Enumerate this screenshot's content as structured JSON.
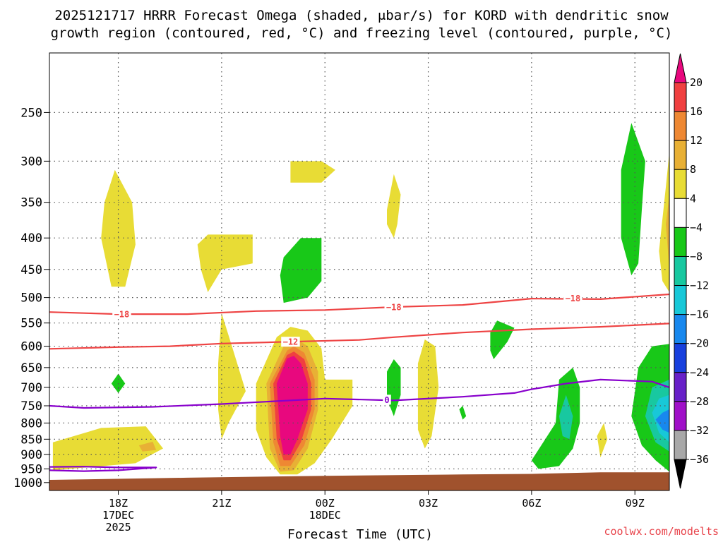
{
  "title_lines": [
    "2025121717 HRRR Forecast Omega (shaded, μbar/s) for KORD with dendritic snow",
    "growth region (contoured, red, °C) and freezing level (contoured, purple, °C)"
  ],
  "credit": "coolwx.com/modelts",
  "colors": {
    "temp_contour": "#ee4444",
    "freezing_contour": "#8800cc",
    "ground": "#a0522d",
    "grid": "#555555"
  },
  "chart_data": {
    "type": "heatmap",
    "title": "2025121717 HRRR Forecast Omega (shaded, μbar/s) for KORD with dendritic snow growth region (contoured, red, °C) and freezing level (contoured, purple, °C)",
    "xlabel": "Forecast Time (UTC)",
    "ylabel": "",
    "x_range_hours": [
      -1,
      17
    ],
    "y_range_hpa": [
      200,
      1030
    ],
    "y_scale": "log-pressure (inverted)",
    "x_ticks": [
      {
        "hours": 1,
        "label": "18Z",
        "sub": [
          "17DEC",
          "2025"
        ]
      },
      {
        "hours": 4,
        "label": "21Z",
        "sub": []
      },
      {
        "hours": 7,
        "label": "00Z",
        "sub": [
          "18DEC"
        ]
      },
      {
        "hours": 10,
        "label": "03Z",
        "sub": []
      },
      {
        "hours": 13,
        "label": "06Z",
        "sub": []
      },
      {
        "hours": 16,
        "label": "09Z",
        "sub": []
      }
    ],
    "y_ticks": [
      250,
      300,
      350,
      400,
      450,
      500,
      550,
      600,
      650,
      700,
      750,
      800,
      850,
      900,
      950,
      1000
    ],
    "colorbar": {
      "levels": [
        -36,
        -32,
        -28,
        -24,
        -20,
        -16,
        -12,
        -8,
        -4,
        4,
        8,
        12,
        16,
        20
      ],
      "labels": [
        "20",
        "16",
        "12",
        "8",
        "4",
        "−4",
        "−8",
        "−12",
        "−16",
        "−20",
        "−24",
        "−28",
        "−32",
        "−36"
      ],
      "colors_top_to_bottom": [
        "#e8087e",
        "#f04040",
        "#ee8833",
        "#e8b035",
        "#e8dc35",
        "#ffffff",
        "#18c818",
        "#18c8a0",
        "#18c8d8",
        "#1888ee",
        "#1840dd",
        "#6820c8",
        "#a010c8",
        "#a8a8a8",
        "#000000"
      ]
    },
    "shaded_regions": [
      {
        "color": "#e8dc35",
        "omega": 6,
        "points": [
          [
            -0.9,
            955
          ],
          [
            1.5,
            930
          ],
          [
            2.3,
            880
          ],
          [
            1.8,
            810
          ],
          [
            0.5,
            815
          ],
          [
            -0.9,
            860
          ]
        ]
      },
      {
        "color": "#e8b035",
        "omega": 9,
        "points": [
          [
            1.6,
            870
          ],
          [
            2.0,
            858
          ],
          [
            2.1,
            885
          ],
          [
            1.7,
            890
          ]
        ]
      },
      {
        "color": "#e8dc35",
        "omega": 5,
        "points": [
          [
            0.6,
            350
          ],
          [
            0.9,
            310
          ],
          [
            1.4,
            350
          ],
          [
            1.5,
            410
          ],
          [
            1.2,
            480
          ],
          [
            0.8,
            480
          ],
          [
            0.5,
            400
          ]
        ]
      },
      {
        "color": "#18c818",
        "omega": -5,
        "points": [
          [
            0.8,
            690
          ],
          [
            1.0,
            665
          ],
          [
            1.2,
            690
          ],
          [
            1.0,
            715
          ]
        ]
      },
      {
        "color": "#e8dc35",
        "omega": 5,
        "points": [
          [
            3.3,
            410
          ],
          [
            3.6,
            395
          ],
          [
            4.9,
            395
          ],
          [
            4.9,
            440
          ],
          [
            4.0,
            450
          ],
          [
            3.6,
            490
          ],
          [
            3.4,
            450
          ]
        ]
      },
      {
        "color": "#e8dc35",
        "omega": 5,
        "points": [
          [
            6.0,
            300
          ],
          [
            6.9,
            300
          ],
          [
            7.3,
            310
          ],
          [
            6.9,
            325
          ],
          [
            6.0,
            325
          ]
        ]
      },
      {
        "color": "#18c818",
        "omega": -6,
        "points": [
          [
            5.8,
            430
          ],
          [
            6.3,
            400
          ],
          [
            6.9,
            400
          ],
          [
            6.9,
            470
          ],
          [
            6.5,
            500
          ],
          [
            5.8,
            510
          ],
          [
            5.7,
            460
          ]
        ]
      },
      {
        "color": "#e8dc35",
        "omega": 6,
        "points": [
          [
            3.9,
            640
          ],
          [
            4.0,
            530
          ],
          [
            4.3,
            600
          ],
          [
            4.7,
            710
          ],
          [
            4.2,
            800
          ],
          [
            4.0,
            850
          ],
          [
            3.9,
            760
          ]
        ]
      },
      {
        "color": "#e8dc35",
        "omega": 6,
        "points": [
          [
            5.0,
            690
          ],
          [
            5.6,
            580
          ],
          [
            6.0,
            558
          ],
          [
            6.5,
            566
          ],
          [
            6.9,
            605
          ],
          [
            7.0,
            680
          ],
          [
            7.8,
            680
          ],
          [
            7.8,
            750
          ],
          [
            7.2,
            850
          ],
          [
            6.7,
            930
          ],
          [
            6.2,
            970
          ],
          [
            5.7,
            970
          ],
          [
            5.3,
            910
          ],
          [
            5.0,
            820
          ]
        ]
      },
      {
        "color": "#e8b035",
        "omega": 9,
        "points": [
          [
            5.3,
            690
          ],
          [
            5.8,
            600
          ],
          [
            6.1,
            580
          ],
          [
            6.5,
            600
          ],
          [
            6.8,
            660
          ],
          [
            6.8,
            760
          ],
          [
            6.5,
            880
          ],
          [
            6.1,
            955
          ],
          [
            5.7,
            960
          ],
          [
            5.4,
            880
          ]
        ]
      },
      {
        "color": "#ee8833",
        "omega": 13,
        "points": [
          [
            5.4,
            690
          ],
          [
            5.9,
            610
          ],
          [
            6.1,
            600
          ],
          [
            6.4,
            615
          ],
          [
            6.7,
            680
          ],
          [
            6.7,
            760
          ],
          [
            6.4,
            870
          ],
          [
            6.0,
            940
          ],
          [
            5.7,
            940
          ],
          [
            5.5,
            860
          ]
        ]
      },
      {
        "color": "#f04040",
        "omega": 17,
        "points": [
          [
            5.5,
            690
          ],
          [
            5.9,
            620
          ],
          [
            6.1,
            612
          ],
          [
            6.4,
            630
          ],
          [
            6.6,
            690
          ],
          [
            6.6,
            760
          ],
          [
            6.3,
            860
          ],
          [
            6.0,
            920
          ],
          [
            5.8,
            920
          ],
          [
            5.6,
            850
          ]
        ]
      },
      {
        "color": "#e8087e",
        "omega": 22,
        "points": [
          [
            5.6,
            690
          ],
          [
            5.9,
            628
          ],
          [
            6.1,
            622
          ],
          [
            6.3,
            640
          ],
          [
            6.5,
            690
          ],
          [
            6.5,
            760
          ],
          [
            6.2,
            850
          ],
          [
            6.0,
            900
          ],
          [
            5.8,
            900
          ],
          [
            5.7,
            840
          ]
        ]
      },
      {
        "color": "#e8dc35",
        "omega": 5,
        "points": [
          [
            8.8,
            360
          ],
          [
            9.0,
            315
          ],
          [
            9.2,
            340
          ],
          [
            9.1,
            380
          ],
          [
            9.0,
            400
          ],
          [
            8.8,
            380
          ]
        ]
      },
      {
        "color": "#18c818",
        "omega": -6,
        "points": [
          [
            8.8,
            660
          ],
          [
            9.0,
            630
          ],
          [
            9.2,
            650
          ],
          [
            9.2,
            720
          ],
          [
            9.0,
            780
          ],
          [
            8.8,
            730
          ]
        ]
      },
      {
        "color": "#e8dc35",
        "omega": 5,
        "points": [
          [
            9.7,
            640
          ],
          [
            9.9,
            585
          ],
          [
            10.2,
            600
          ],
          [
            10.3,
            700
          ],
          [
            10.1,
            840
          ],
          [
            9.9,
            880
          ],
          [
            9.7,
            820
          ]
        ]
      },
      {
        "color": "#18c818",
        "omega": -5,
        "points": [
          [
            10.9,
            760
          ],
          [
            11.0,
            750
          ],
          [
            11.1,
            780
          ],
          [
            11.0,
            790
          ]
        ]
      },
      {
        "color": "#18c818",
        "omega": -6,
        "points": [
          [
            11.8,
            570
          ],
          [
            12.0,
            545
          ],
          [
            12.5,
            560
          ],
          [
            12.3,
            590
          ],
          [
            11.9,
            630
          ],
          [
            11.8,
            610
          ]
        ]
      },
      {
        "color": "#18c818",
        "omega": -7,
        "points": [
          [
            13.0,
            920
          ],
          [
            13.7,
            800
          ],
          [
            13.8,
            680
          ],
          [
            14.2,
            650
          ],
          [
            14.4,
            700
          ],
          [
            14.4,
            800
          ],
          [
            14.2,
            880
          ],
          [
            13.8,
            940
          ],
          [
            13.2,
            950
          ]
        ]
      },
      {
        "color": "#18c8a0",
        "omega": -9,
        "points": [
          [
            13.8,
            780
          ],
          [
            14.0,
            720
          ],
          [
            14.2,
            780
          ],
          [
            14.1,
            850
          ],
          [
            13.9,
            840
          ]
        ]
      },
      {
        "color": "#e8dc35",
        "omega": 5,
        "points": [
          [
            14.9,
            840
          ],
          [
            15.1,
            800
          ],
          [
            15.2,
            850
          ],
          [
            15.0,
            910
          ]
        ]
      },
      {
        "color": "#18c818",
        "omega": -6,
        "points": [
          [
            15.6,
            310
          ],
          [
            15.9,
            260
          ],
          [
            16.3,
            300
          ],
          [
            16.2,
            360
          ],
          [
            16.1,
            440
          ],
          [
            15.9,
            460
          ],
          [
            15.6,
            400
          ]
        ]
      },
      {
        "color": "#e8dc35",
        "omega": 5,
        "points": [
          [
            16.1,
            770
          ],
          [
            16.3,
            740
          ],
          [
            16.3,
            800
          ],
          [
            16.2,
            830
          ]
        ]
      },
      {
        "color": "#e8dc35",
        "omega": 5,
        "points": [
          [
            16.7,
            420
          ],
          [
            16.9,
            330
          ],
          [
            17.0,
            290
          ],
          [
            17.0,
            490
          ],
          [
            16.8,
            470
          ]
        ]
      },
      {
        "color": "#e8b035",
        "omega": 9,
        "points": [
          [
            16.9,
            380
          ],
          [
            17.0,
            340
          ],
          [
            17.0,
            450
          ]
        ]
      },
      {
        "color": "#18c818",
        "omega": -6,
        "points": [
          [
            15.9,
            780
          ],
          [
            16.1,
            650
          ],
          [
            16.5,
            600
          ],
          [
            17.0,
            595
          ],
          [
            17.0,
            960
          ],
          [
            16.6,
            920
          ],
          [
            16.2,
            870
          ]
        ]
      },
      {
        "color": "#18c8a0",
        "omega": -10,
        "points": [
          [
            16.3,
            780
          ],
          [
            16.5,
            700
          ],
          [
            17.0,
            680
          ],
          [
            17.0,
            890
          ],
          [
            16.6,
            860
          ]
        ]
      },
      {
        "color": "#18c8d8",
        "omega": -14,
        "points": [
          [
            16.5,
            770
          ],
          [
            16.7,
            730
          ],
          [
            17.0,
            720
          ],
          [
            17.0,
            860
          ],
          [
            16.7,
            830
          ]
        ]
      },
      {
        "color": "#1888ee",
        "omega": -18,
        "points": [
          [
            16.6,
            790
          ],
          [
            16.8,
            770
          ],
          [
            17.0,
            760
          ],
          [
            17.0,
            830
          ],
          [
            16.8,
            820
          ]
        ]
      }
    ],
    "contours": [
      {
        "name": "minus18",
        "value": -18,
        "color": "#ee4444",
        "label": "−18",
        "label_points": [
          [
            1.1,
            532
          ],
          [
            9.0,
            518
          ],
          [
            14.2,
            501
          ]
        ],
        "points": [
          [
            -1,
            528
          ],
          [
            1,
            532
          ],
          [
            3,
            532
          ],
          [
            5,
            526
          ],
          [
            7,
            524
          ],
          [
            9,
            518
          ],
          [
            11,
            514
          ],
          [
            13,
            502
          ],
          [
            15,
            503
          ],
          [
            17,
            494
          ]
        ]
      },
      {
        "name": "minus12",
        "value": -12,
        "color": "#ee4444",
        "label": "−12",
        "label_points": [
          [
            6.0,
            590
          ]
        ],
        "points": [
          [
            -1,
            606
          ],
          [
            1,
            602
          ],
          [
            2.5,
            600
          ],
          [
            4,
            594
          ],
          [
            6,
            590
          ],
          [
            8,
            586
          ],
          [
            9,
            580
          ],
          [
            11,
            570
          ],
          [
            13,
            563
          ],
          [
            15,
            558
          ],
          [
            17,
            551
          ]
        ]
      },
      {
        "name": "freezing0",
        "value": 0,
        "color": "#8800cc",
        "label": "0",
        "label_points": [
          [
            8.8,
            733
          ]
        ],
        "points": [
          [
            -1,
            750
          ],
          [
            0,
            756
          ],
          [
            2,
            753
          ],
          [
            4,
            745
          ],
          [
            6,
            735
          ],
          [
            7,
            730
          ],
          [
            9,
            735
          ],
          [
            11,
            725
          ],
          [
            12.5,
            715
          ],
          [
            13,
            705
          ],
          [
            14,
            690
          ],
          [
            15,
            680
          ],
          [
            16.5,
            685
          ],
          [
            17,
            700
          ]
        ]
      },
      {
        "name": "freezing-surface",
        "value": 0,
        "color": "#8800cc",
        "label": "",
        "label_points": [],
        "points": [
          [
            -1,
            955
          ],
          [
            0,
            958
          ],
          [
            1,
            955
          ],
          [
            2.1,
            945
          ],
          [
            1,
            945
          ],
          [
            0,
            942
          ],
          [
            -1,
            943
          ]
        ]
      }
    ],
    "ground": {
      "color": "#a0522d",
      "top_points": [
        [
          -1,
          990
        ],
        [
          3,
          982
        ],
        [
          7,
          975
        ],
        [
          11,
          970
        ],
        [
          13,
          968
        ],
        [
          15,
          962
        ],
        [
          17,
          962
        ]
      ]
    }
  }
}
